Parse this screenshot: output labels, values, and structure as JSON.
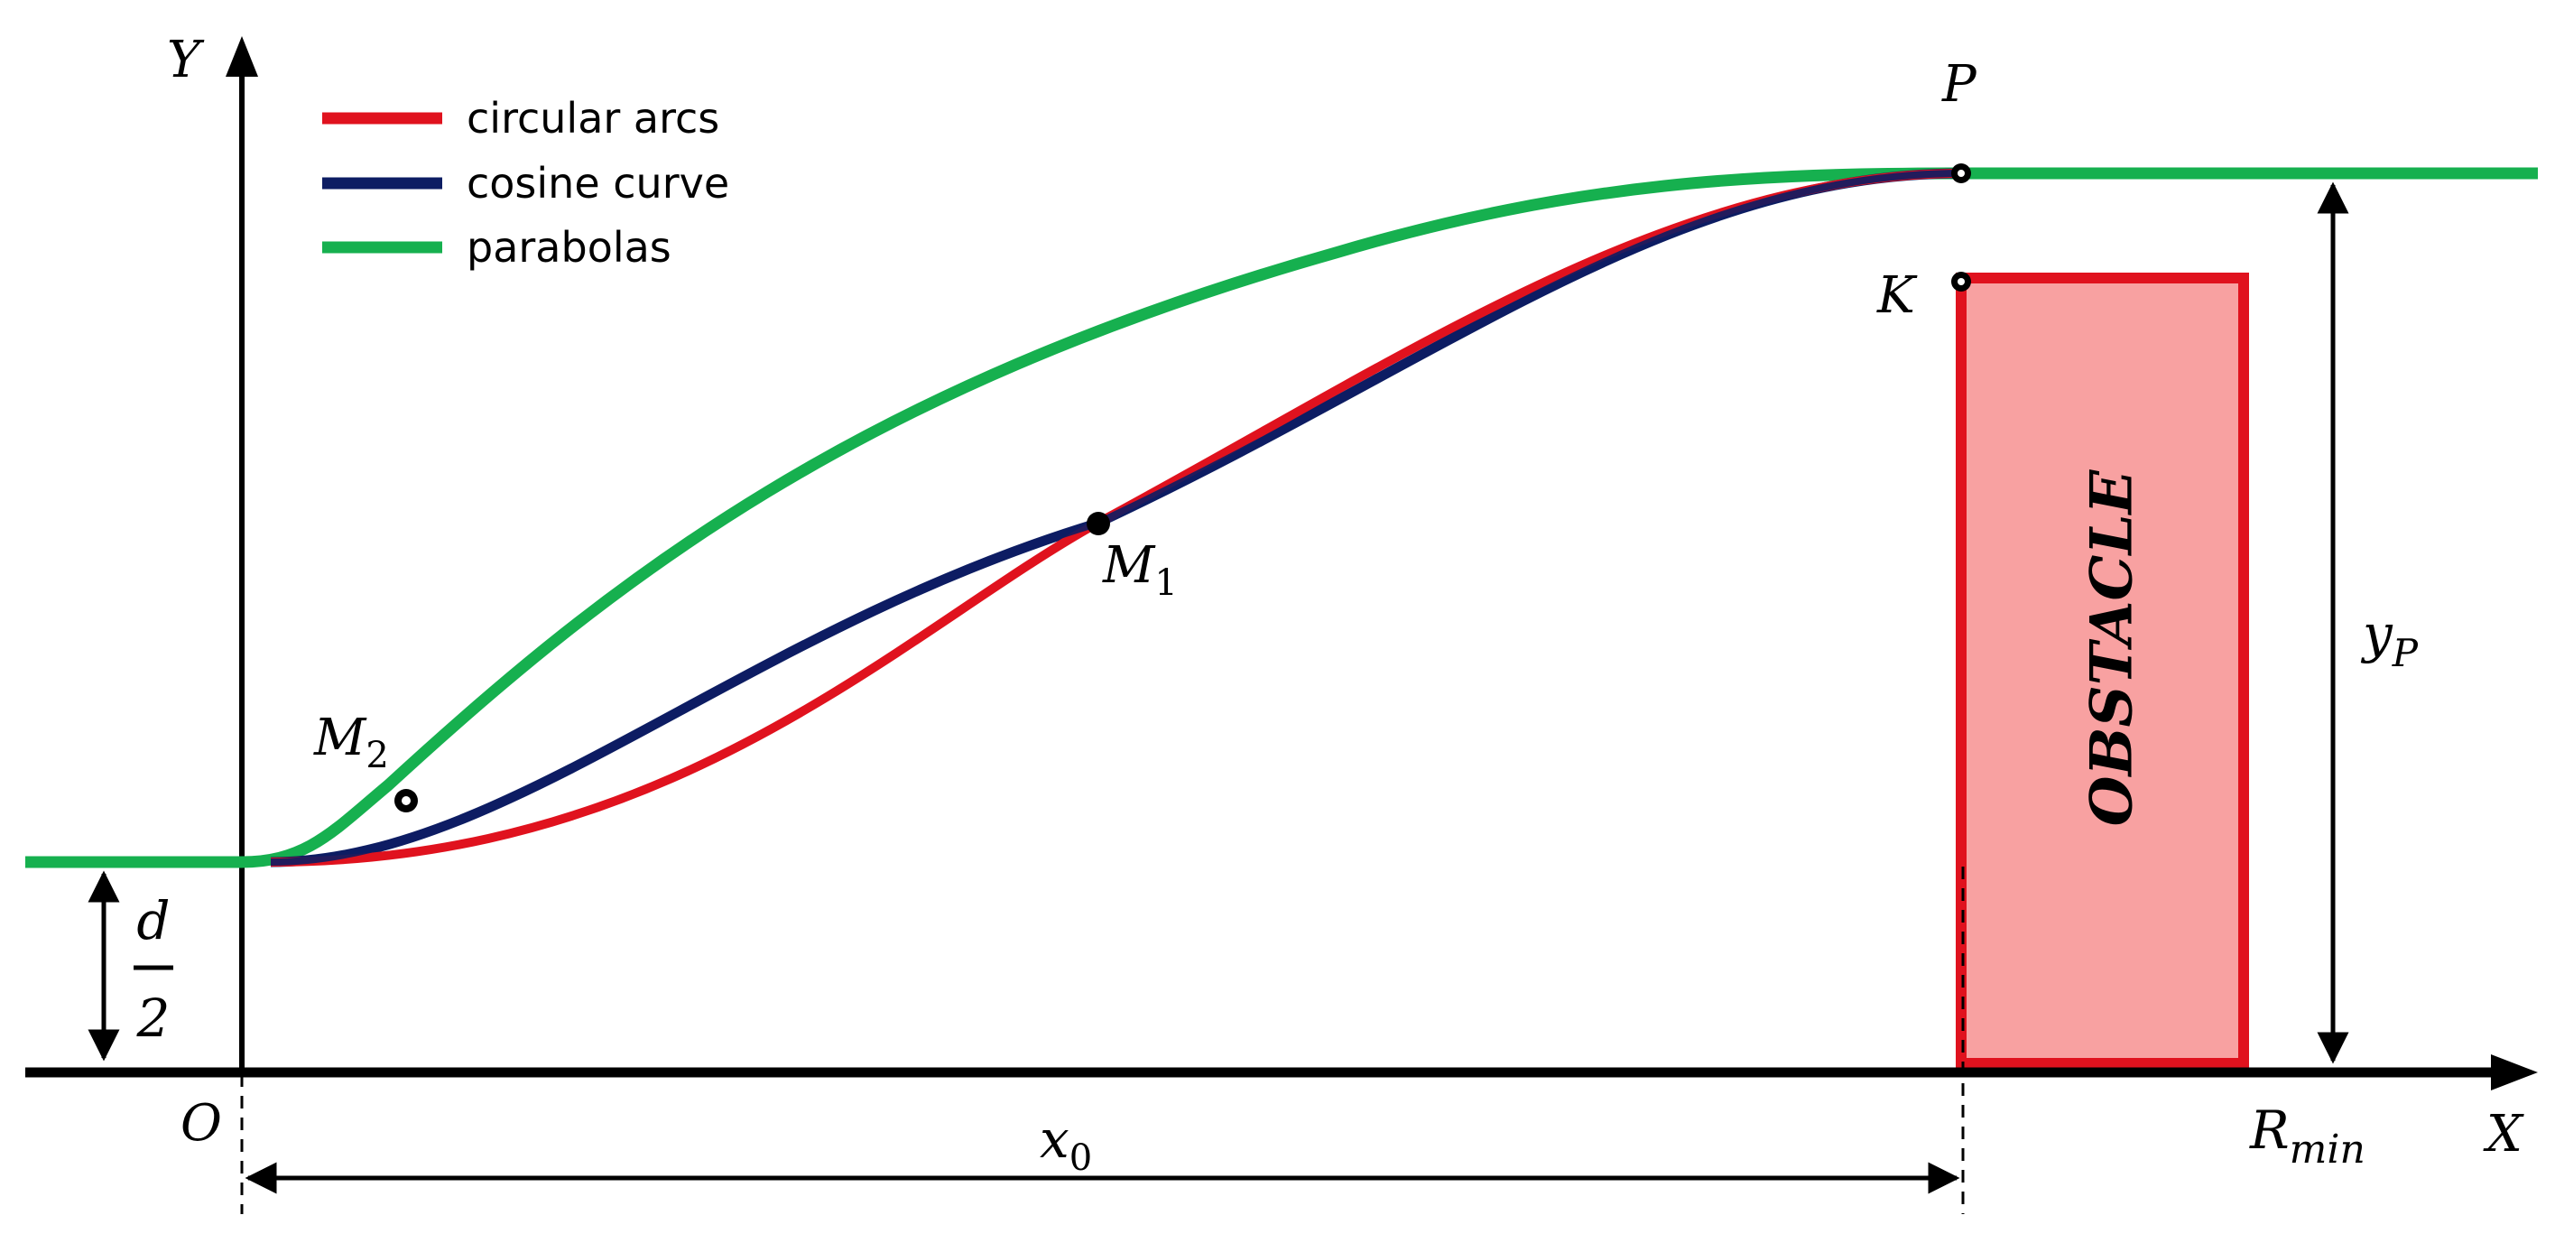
{
  "legend": [
    {
      "label": "circular arcs",
      "color": "#e0121e"
    },
    {
      "label": "cosine curve",
      "color": "#0d1d63"
    },
    {
      "label": "parabolas",
      "color": "#16b04f"
    }
  ],
  "axes": {
    "y_label": "Y",
    "x_label": "X",
    "origin_label": "O"
  },
  "points": {
    "P": "P",
    "K": "K",
    "M1": {
      "base": "M",
      "sub": "1"
    },
    "M2": {
      "base": "M",
      "sub": "2"
    }
  },
  "dimensions": {
    "x0": {
      "base": "x",
      "sub": "0"
    },
    "yP": {
      "base": "y",
      "sub": "P"
    },
    "d_num": "d",
    "d_den": "2",
    "rmin": {
      "base": "R",
      "sub": "min"
    }
  },
  "obstacle": {
    "label": "OBSTACLE",
    "fill": "#f8a1a1",
    "stroke": "#e0121e"
  },
  "colors": {
    "axis": "#000000",
    "circular_arcs": "#e0121e",
    "cosine_curve": "#0d1d63",
    "parabolas": "#16b04f"
  }
}
